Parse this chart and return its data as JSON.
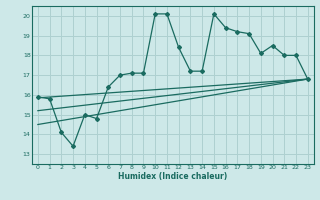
{
  "title": "",
  "xlabel": "Humidex (Indice chaleur)",
  "ylabel": "",
  "bg_color": "#cde8e8",
  "line_color": "#1a6b60",
  "grid_color": "#aed0d0",
  "xlim": [
    -0.5,
    23.5
  ],
  "ylim": [
    12.5,
    20.5
  ],
  "xticks": [
    0,
    1,
    2,
    3,
    4,
    5,
    6,
    7,
    8,
    9,
    10,
    11,
    12,
    13,
    14,
    15,
    16,
    17,
    18,
    19,
    20,
    21,
    22,
    23
  ],
  "yticks": [
    13,
    14,
    15,
    16,
    17,
    18,
    19,
    20
  ],
  "main_line": {
    "x": [
      0,
      1,
      2,
      3,
      4,
      5,
      6,
      7,
      8,
      9,
      10,
      11,
      12,
      13,
      14,
      15,
      16,
      17,
      18,
      19,
      20,
      21,
      22,
      23
    ],
    "y": [
      15.9,
      15.8,
      14.1,
      13.4,
      15.0,
      14.8,
      16.4,
      17.0,
      17.1,
      17.1,
      20.1,
      20.1,
      18.4,
      17.2,
      17.2,
      20.1,
      19.4,
      19.2,
      19.1,
      18.1,
      18.5,
      18.0,
      18.0,
      16.8
    ]
  },
  "upper_line": {
    "x": [
      0,
      23
    ],
    "y": [
      15.85,
      16.8
    ]
  },
  "lower_line": {
    "x": [
      0,
      23
    ],
    "y": [
      14.5,
      16.8
    ]
  },
  "mid_line": {
    "x": [
      0,
      23
    ],
    "y": [
      15.2,
      16.8
    ]
  }
}
